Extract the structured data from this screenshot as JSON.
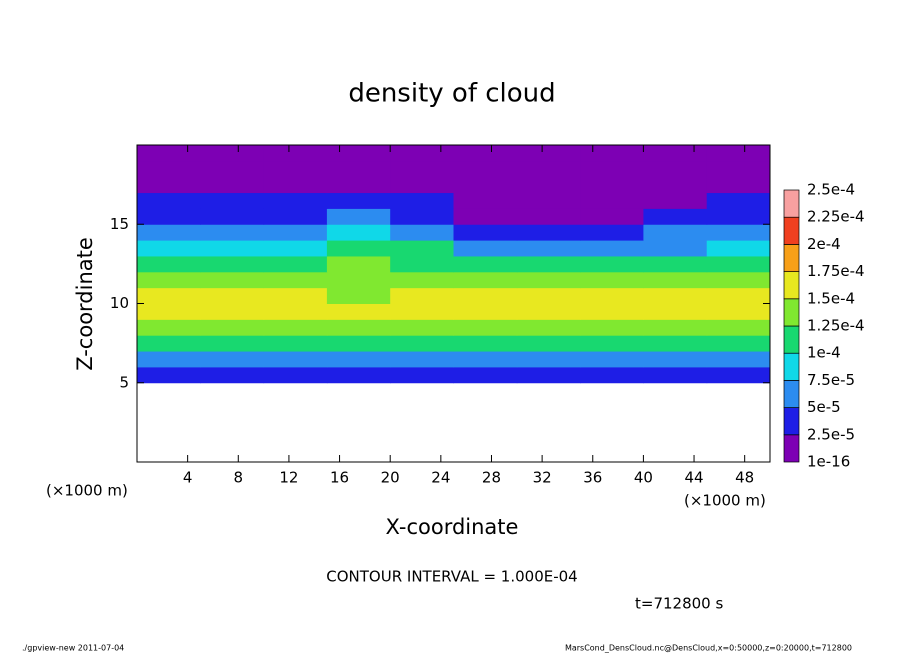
{
  "chart_data": {
    "type": "heatmap",
    "title": "density of cloud",
    "xlabel": "X-coordinate",
    "ylabel": "Z-coordinate",
    "x_unit": "(×1000 m)",
    "annotation": "CONTOUR INTERVAL = 1.000E-04",
    "time_label": "t=712800 s",
    "footer_left": "./gpview-new  2011-07-04",
    "footer_right": "MarsCond_DensCloud.nc@DensCloud,x=0:50000,z=0:20000,t=712800",
    "xlim": [
      0,
      50
    ],
    "xticks": [
      4,
      8,
      12,
      16,
      20,
      24,
      28,
      32,
      36,
      40,
      44,
      48
    ],
    "ylim": [
      0,
      20
    ],
    "yticks": [
      5,
      10,
      15
    ],
    "x": [
      0,
      5,
      10,
      15,
      20,
      25,
      30,
      35,
      40,
      45,
      50
    ],
    "z": [
      5,
      6,
      7,
      8,
      9,
      10,
      11,
      12,
      13,
      14,
      15,
      16,
      17,
      18,
      19,
      20
    ],
    "values": [
      [
        3e-05,
        3e-05,
        3e-05,
        3e-05,
        3e-05,
        3e-05,
        3e-05,
        3e-05,
        3e-05,
        3e-05
      ],
      [
        7e-05,
        7e-05,
        7e-05,
        7e-05,
        7e-05,
        7e-05,
        7e-05,
        7e-05,
        7e-05,
        7e-05
      ],
      [
        0.00011,
        0.00011,
        0.00011,
        0.00011,
        0.00011,
        0.00011,
        0.00011,
        0.00011,
        0.00011,
        0.00011
      ],
      [
        0.00014,
        0.000145,
        0.00014,
        0.000135,
        0.00013,
        0.00014,
        0.000145,
        0.00014,
        0.000145,
        0.00014
      ],
      [
        0.000165,
        0.00016,
        0.000155,
        0.00015,
        0.000155,
        0.000165,
        0.00016,
        0.000165,
        0.00016,
        0.000165
      ],
      [
        0.00016,
        0.000155,
        0.00015,
        0.000145,
        0.00015,
        0.00016,
        0.000155,
        0.00016,
        0.000155,
        0.00016
      ],
      [
        0.000135,
        0.00013,
        0.00013,
        0.000135,
        0.00013,
        0.000135,
        0.00013,
        0.00013,
        0.00013,
        0.000135
      ],
      [
        0.0001,
        0.000105,
        0.0001,
        0.00013,
        0.00012,
        0.0001,
        0.0001,
        0.0001,
        0.0001,
        0.0001
      ],
      [
        8e-05,
        8e-05,
        8e-05,
        0.00011,
        0.0001,
        6e-05,
        7e-05,
        7e-05,
        7e-05,
        8e-05
      ],
      [
        6e-05,
        6e-05,
        6e-05,
        8e-05,
        7e-05,
        4e-05,
        3.5e-05,
        4e-05,
        5e-05,
        6e-05
      ],
      [
        4e-05,
        4e-05,
        4e-05,
        5e-05,
        4e-05,
        2e-05,
        2e-05,
        2e-05,
        3e-05,
        4e-05
      ],
      [
        2.5e-05,
        2.5e-05,
        2.5e-05,
        3e-05,
        2.5e-05,
        1.5e-05,
        1.5e-05,
        1.5e-05,
        2e-05,
        2.5e-05
      ],
      [
        1.5e-05,
        1.5e-05,
        1.5e-05,
        1.5e-05,
        1.5e-05,
        1.5e-05,
        1.5e-05,
        1.5e-05,
        1.5e-05,
        1.5e-05
      ],
      [
        1e-05,
        1e-05,
        1e-05,
        1e-05,
        1e-05,
        1e-05,
        1e-05,
        1e-05,
        1e-05,
        1e-05
      ],
      [
        5e-06,
        5e-06,
        5e-06,
        5e-06,
        5e-06,
        5e-06,
        5e-06,
        5e-06,
        5e-06,
        5e-06
      ]
    ],
    "levels": [
      {
        "value": 1e-16,
        "label": "1e-16"
      },
      {
        "value": 2.5e-05,
        "label": "2.5e-5"
      },
      {
        "value": 5e-05,
        "label": "5e-5"
      },
      {
        "value": 7.5e-05,
        "label": "7.5e-5"
      },
      {
        "value": 0.0001,
        "label": "1e-4"
      },
      {
        "value": 0.000125,
        "label": "1.25e-4"
      },
      {
        "value": 0.00015,
        "label": "1.5e-4"
      },
      {
        "value": 0.000175,
        "label": "1.75e-4"
      },
      {
        "value": 0.0002,
        "label": "2e-4"
      },
      {
        "value": 0.000225,
        "label": "2.25e-4"
      },
      {
        "value": 0.00025,
        "label": "2.5e-4"
      }
    ],
    "colors": [
      "#7d00b4",
      "#1e1ee6",
      "#2c8cf0",
      "#10d8e8",
      "#18d870",
      "#80e830",
      "#e8e820",
      "#f8a018",
      "#f04020",
      "#f8a0a0"
    ]
  }
}
